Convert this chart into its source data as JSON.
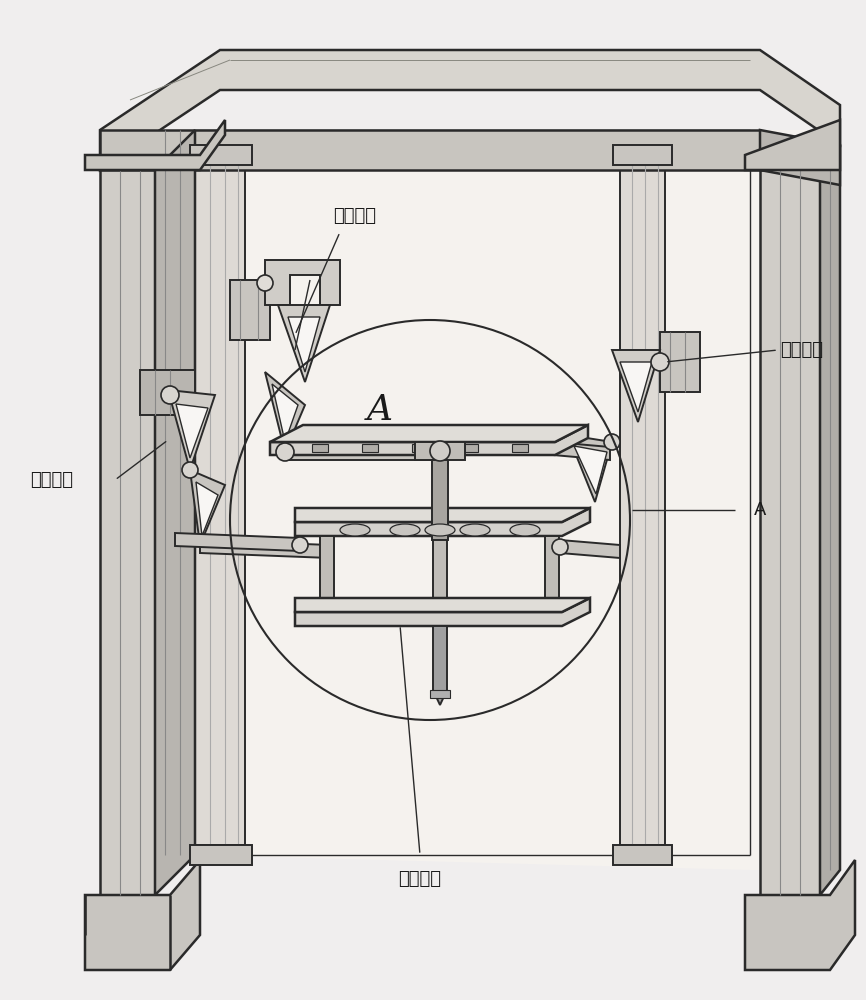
{
  "bg_color": "#f0eeee",
  "line_color": "#2a2a2a",
  "fill_light": "#e8e5e0",
  "fill_mid": "#d8d5d0",
  "fill_dark": "#c0bdb8",
  "fill_white": "#f8f6f4",
  "labels": {
    "di_er_fen_zhi": "第二分支",
    "di_san_fen_zhi": "第三分支",
    "di_yi_fen_zhi": "第一分支",
    "di_si_fen_zhi": "第四分支",
    "A_big": "A",
    "A_small": "A"
  },
  "font_size": 13,
  "font_size_A_big": 26,
  "font_size_A_small": 13
}
